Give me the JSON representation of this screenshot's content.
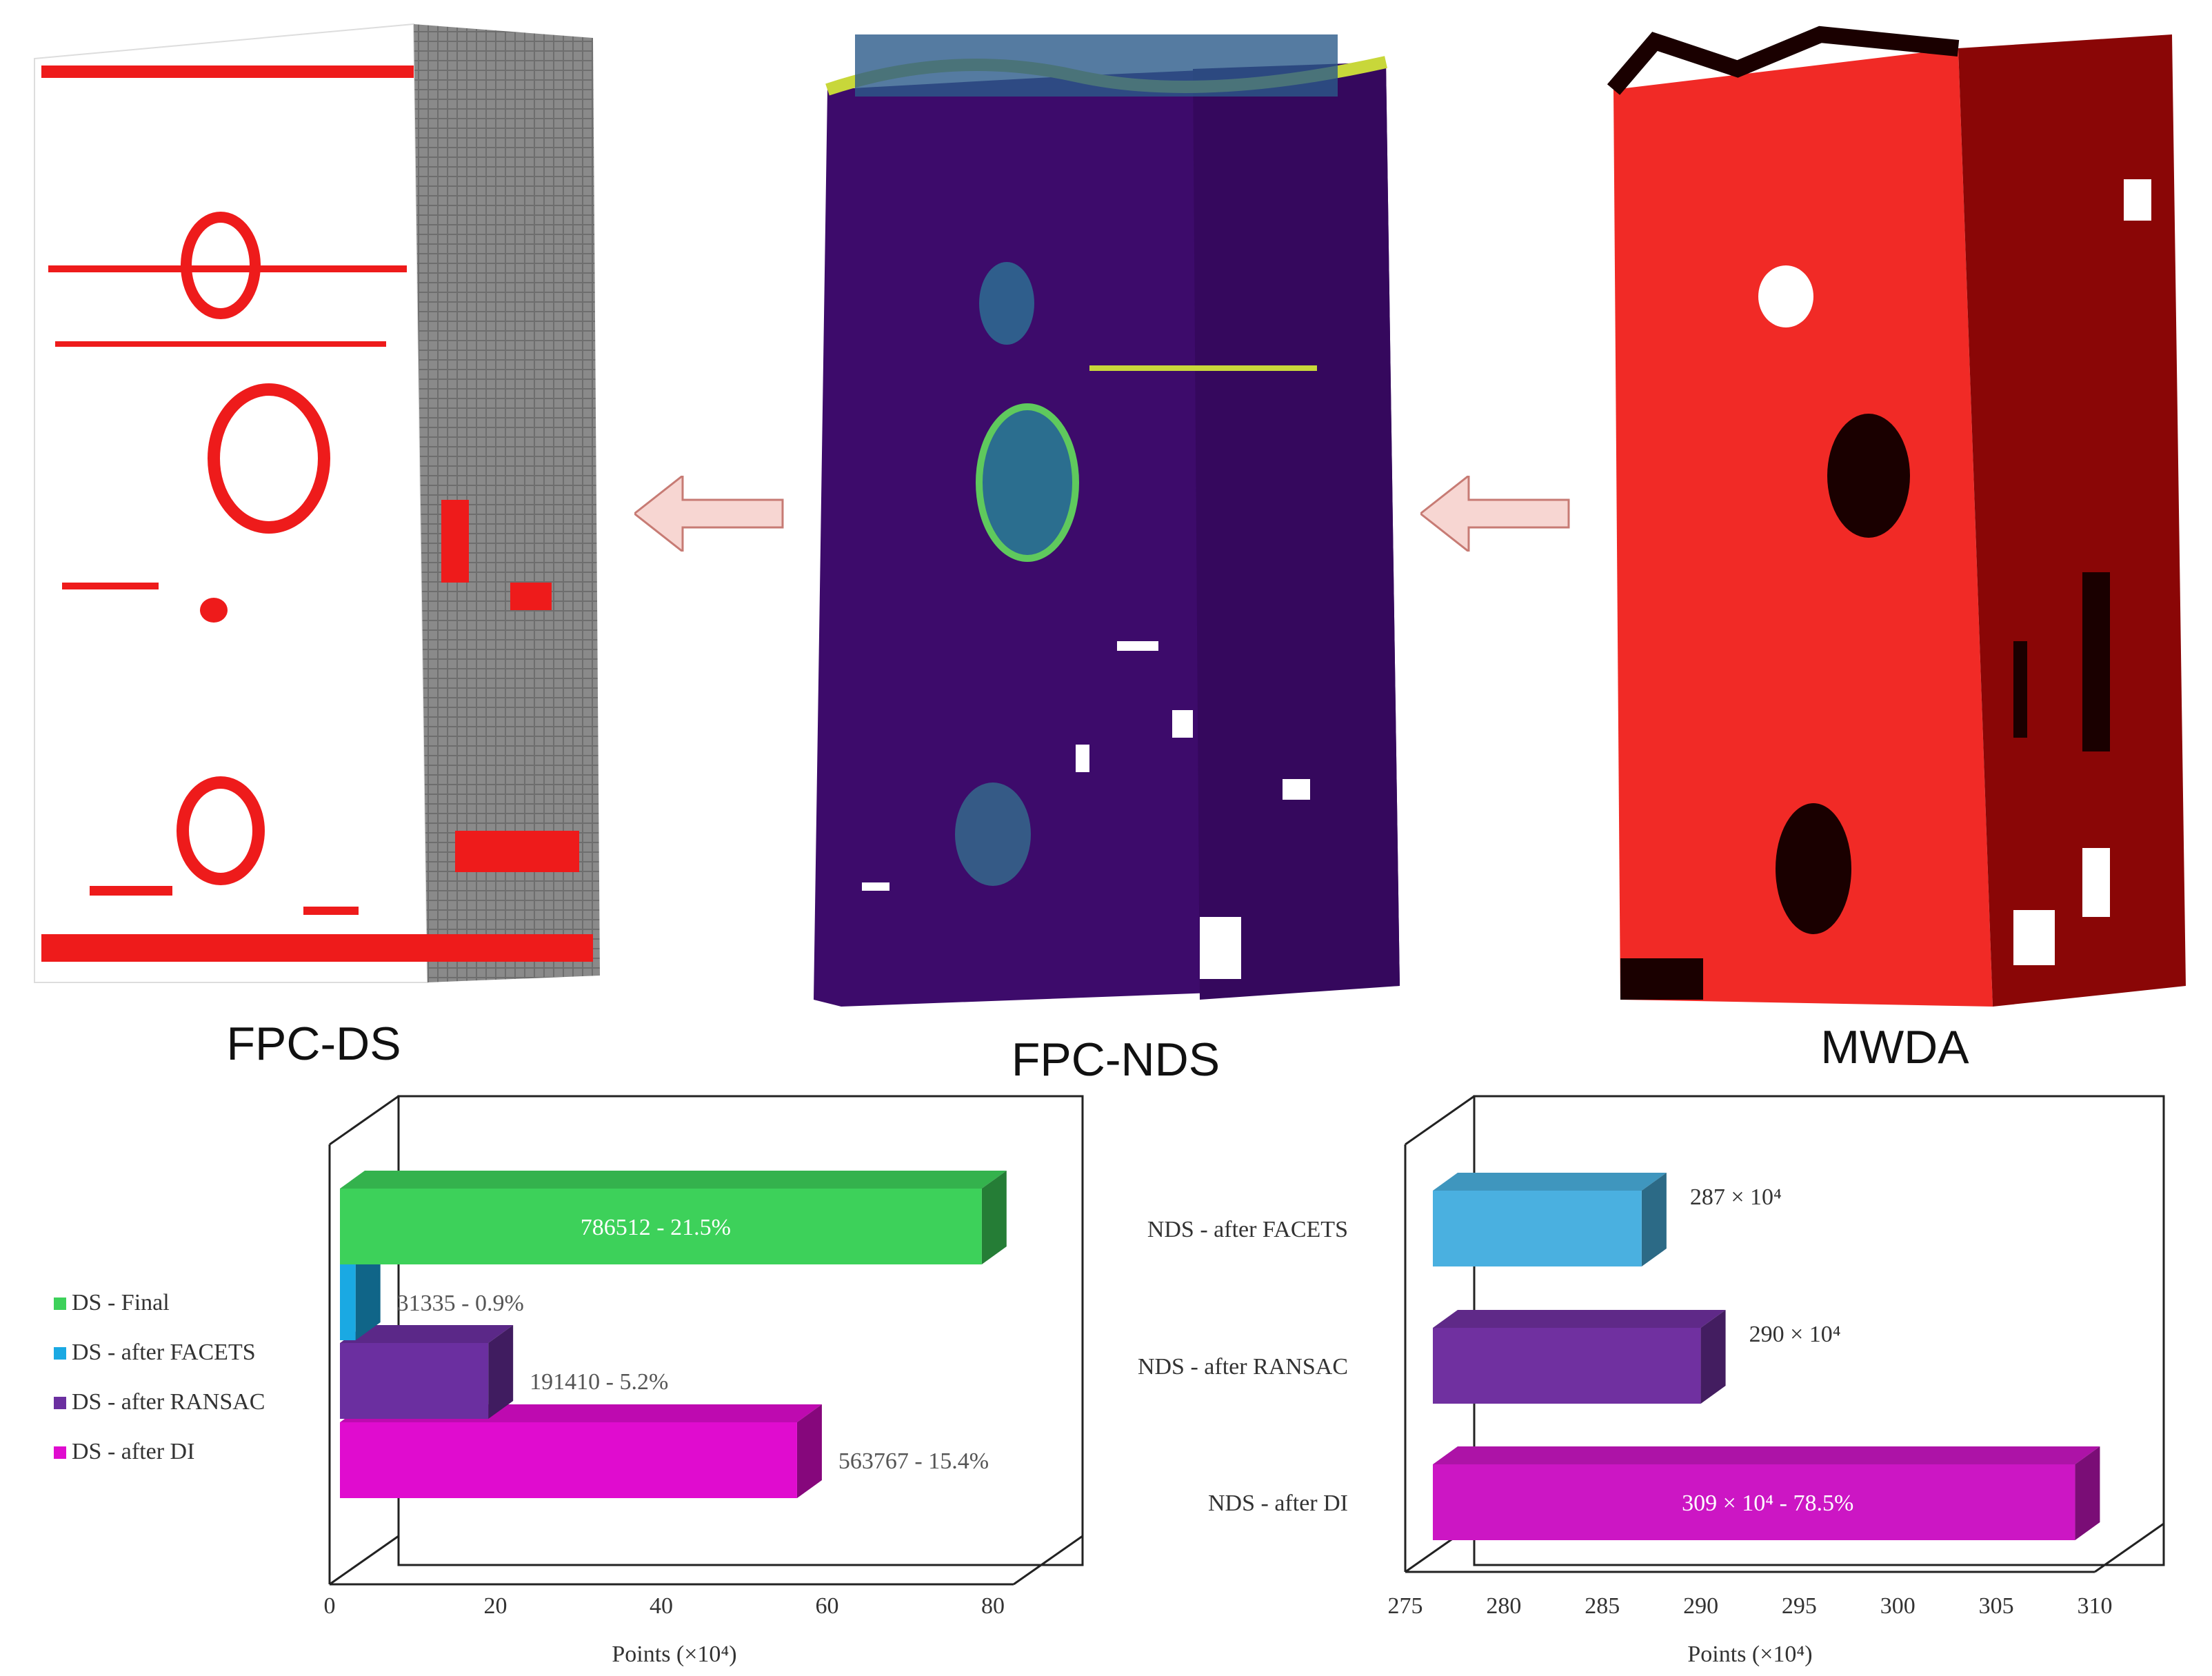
{
  "panels": {
    "left_caption": "FPC-DS",
    "middle_caption": "FPC-NDS",
    "right_caption": "MWDA"
  },
  "colors": {
    "ds_final": "#3dd15a",
    "ds_facets": "#1aa9e3",
    "ds_ransac": "#6b2fa0",
    "ds_di": "#e00ccf",
    "nds_facets": "#4ab0e0",
    "nds_ransac": "#7030a0",
    "nds_di": "#cc16c4",
    "arrow_fill": "#f7d6d2",
    "arrow_stroke": "#c77b74"
  },
  "chart_data": [
    {
      "type": "bar",
      "orientation": "horizontal",
      "categories": [
        "DS - after DI",
        "DS - after RANSAC",
        "DS - after FACETS",
        "DS - Final"
      ],
      "values": [
        56.3767,
        19.141,
        3.1335,
        78.6512
      ],
      "data_labels": [
        "563767 - 15.4%",
        "191410 - 5.2%",
        "31335 - 0.9%",
        "786512 - 21.5%"
      ],
      "legend": [
        "DS - Final",
        "DS - after FACETS",
        "DS - after RANSAC",
        "DS - after DI"
      ],
      "legend_placement": "left",
      "xlabel": "Points (×10⁴)",
      "xticks": [
        "0",
        "20",
        "40",
        "60",
        "80"
      ],
      "xlim": [
        0,
        80
      ]
    },
    {
      "type": "bar",
      "orientation": "horizontal",
      "categories": [
        "NDS - after DI",
        "NDS - after RANSAC",
        "NDS - after FACETS"
      ],
      "values": [
        309,
        290,
        287
      ],
      "data_labels": [
        "309 × 10⁴ - 78.5%",
        "290 × 10⁴",
        "287 × 10⁴"
      ],
      "xlabel": "Points (×10⁴)",
      "xticks": [
        "275",
        "280",
        "285",
        "290",
        "295",
        "300",
        "305",
        "310"
      ],
      "xlim": [
        275,
        310
      ]
    }
  ]
}
